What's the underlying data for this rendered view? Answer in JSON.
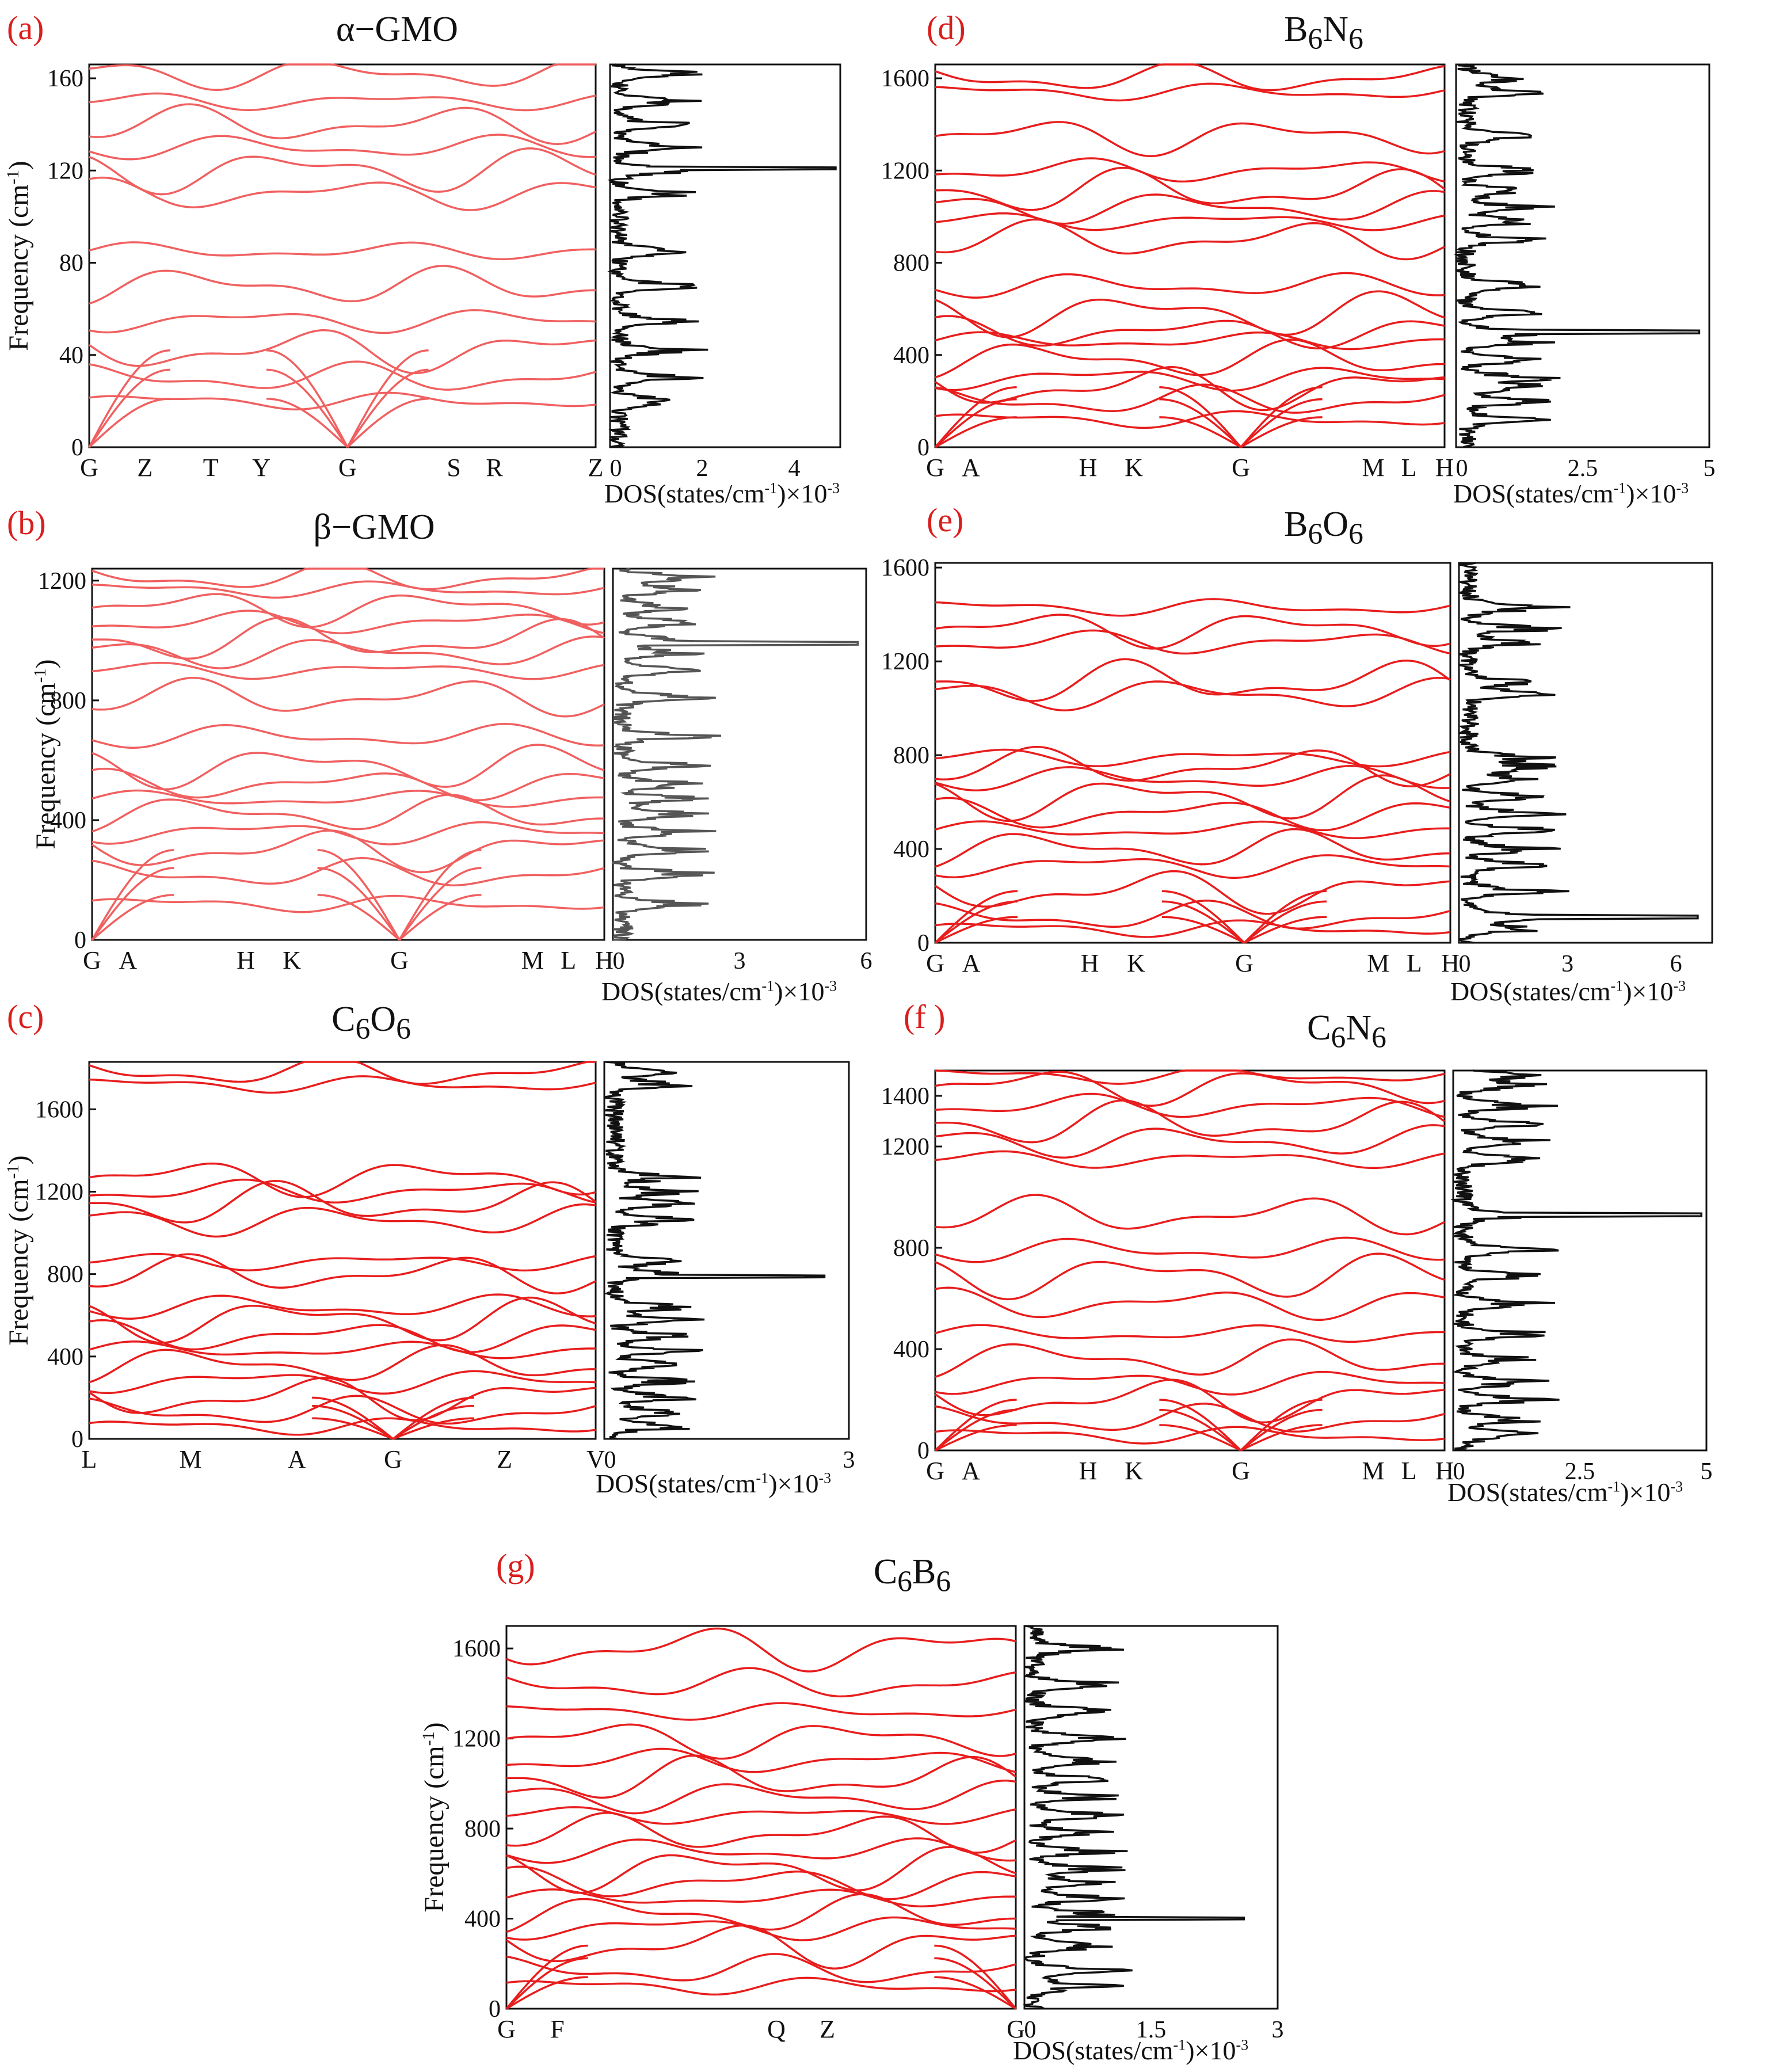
{
  "figure": {
    "line_color": "#e81d1d",
    "line_color_light": "#f06060",
    "dos_color": "#111111",
    "dos_color_grey": "#555555",
    "label_color": "#d91e1e"
  },
  "chart_data": [
    {
      "type": "line",
      "id": "a",
      "panel_label": "(a)",
      "title": "α−GMO",
      "ylabel": "Frequency (cm",
      "ylabel_sup": "-1",
      "ylabel_end": ")",
      "ylim": [
        0,
        166
      ],
      "yticks": [
        0,
        40,
        80,
        120,
        160
      ],
      "kpoints": [
        "G",
        "Z",
        "T",
        "Y",
        "G",
        "S",
        "R",
        "Z"
      ],
      "dos_xlabel": "DOS(states/cm",
      "dos_xlabel_sup": "-1",
      "dos_xlabel_end": ")×10",
      "dos_xlabel_exp": "-3",
      "dos_xticks": [
        "0",
        "2",
        "4"
      ],
      "dos_xmax": 5,
      "dos_peak": {
        "frequency": 121,
        "value": 4.95
      },
      "band_levels": [
        20,
        30,
        42,
        55,
        70,
        85,
        110,
        120,
        130,
        140,
        150,
        162
      ],
      "dos_color_key": "dos_color",
      "line_color_key": "line_color_light"
    },
    {
      "type": "line",
      "id": "b",
      "panel_label": "(b)",
      "title": "β−GMO",
      "ylabel": "Frequency (cm",
      "ylabel_sup": "-1",
      "ylabel_end": ")",
      "ylim": [
        0,
        1240
      ],
      "yticks": [
        0,
        400,
        800,
        1200
      ],
      "kpoints": [
        "G",
        "A",
        "H",
        "K",
        "G",
        "M",
        "L",
        "H"
      ],
      "dos_xlabel": "DOS(states/cm",
      "dos_xlabel_sup": "-1",
      "dos_xlabel_end": ")×10",
      "dos_xlabel_exp": "-3",
      "dos_xticks": [
        "0",
        "3",
        "6"
      ],
      "dos_xmax": 6,
      "dos_peak": {
        "frequency": 990,
        "value": 5.8
      },
      "band_levels": [
        120,
        220,
        300,
        360,
        420,
        470,
        520,
        580,
        680,
        810,
        900,
        960,
        1000,
        1060,
        1110,
        1170,
        1210
      ],
      "dos_color_key": "dos_color_grey",
      "line_color_key": "line_color_light"
    },
    {
      "type": "line",
      "id": "c",
      "panel_label": "(c)",
      "title_main": "C",
      "title_sub1": "6",
      "title_mid": "O",
      "title_sub2": "6",
      "ylabel": "Frequency (cm",
      "ylabel_sup": "-1",
      "ylabel_end": ")",
      "ylim": [
        0,
        1830
      ],
      "yticks": [
        0,
        400,
        800,
        1200,
        1600
      ],
      "kpoints": [
        "L",
        "M",
        "A",
        "G",
        "Z",
        "V"
      ],
      "dos_xlabel": "DOS(states/cm",
      "dos_xlabel_sup": "-1",
      "dos_xlabel_end": ")×10",
      "dos_xlabel_exp": "-3",
      "dos_xticks": [
        "0",
        "3"
      ],
      "dos_xmax": 3,
      "dos_peak": {
        "frequency": 790,
        "value": 2.7
      },
      "band_levels": [
        60,
        130,
        200,
        280,
        360,
        430,
        500,
        580,
        640,
        800,
        860,
        1060,
        1140,
        1200,
        1270,
        1720,
        1780
      ],
      "dos_color_key": "dos_color",
      "line_color_key": "line_color"
    },
    {
      "type": "line",
      "id": "d",
      "panel_label": "(d)",
      "title_main": "B",
      "title_sub1": "6",
      "title_mid": "N",
      "title_sub2": "6",
      "ylabel": "",
      "ylim": [
        0,
        1660
      ],
      "yticks": [
        0,
        400,
        800,
        1200,
        1600
      ],
      "kpoints": [
        "G",
        "A",
        "H",
        "K",
        "G",
        "M",
        "L",
        "H"
      ],
      "dos_xlabel": "DOS(states/cm",
      "dos_xlabel_sup": "-1",
      "dos_xlabel_end": ")×10",
      "dos_xlabel_exp": "-3",
      "dos_xticks": [
        "0",
        "2.5",
        "5"
      ],
      "dos_xmax": 5,
      "dos_peak": {
        "frequency": 500,
        "value": 4.8
      },
      "band_levels": [
        120,
        200,
        260,
        300,
        380,
        460,
        500,
        580,
        700,
        900,
        980,
        1040,
        1110,
        1200,
        1350,
        1540,
        1600
      ],
      "dos_color_key": "dos_color",
      "line_color_key": "line_color"
    },
    {
      "type": "line",
      "id": "e",
      "panel_label": "(e)",
      "title_main": "B",
      "title_sub1": "6",
      "title_mid": "O",
      "title_sub2": "6",
      "ylabel": "",
      "ylim": [
        0,
        1620
      ],
      "yticks": [
        0,
        400,
        800,
        1200,
        1600
      ],
      "kpoints": [
        "G",
        "A",
        "H",
        "K",
        "G",
        "M",
        "L",
        "H"
      ],
      "dos_xlabel": "DOS(states/cm",
      "dos_xlabel_sup": "-1",
      "dos_xlabel_end": ")×10",
      "dos_xlabel_exp": "-3",
      "dos_xticks": [
        "0",
        "3",
        "6"
      ],
      "dos_xmax": 7,
      "dos_peak": {
        "frequency": 110,
        "value": 6.6
      },
      "band_levels": [
        60,
        110,
        220,
        330,
        400,
        480,
        550,
        620,
        700,
        750,
        790,
        1060,
        1110,
        1280,
        1340,
        1430
      ],
      "dos_color_key": "dos_color",
      "line_color_key": "line_color"
    },
    {
      "type": "line",
      "id": "f",
      "panel_label": "(f )",
      "title_main": "C",
      "title_sub1": "6",
      "title_mid": "N",
      "title_sub2": "6",
      "ylabel": "",
      "ylim": [
        0,
        1500
      ],
      "yticks": [
        0,
        400,
        800,
        1200,
        1400
      ],
      "kpoints": [
        "G",
        "A",
        "H",
        "K",
        "G",
        "M",
        "L",
        "H"
      ],
      "dos_xlabel": "DOS(states/cm",
      "dos_xlabel_sup": "-1",
      "dos_xlabel_end": ")×10",
      "dos_xlabel_exp": "-3",
      "dos_xticks": [
        "0",
        "2.5",
        "5"
      ],
      "dos_xmax": 5,
      "dos_peak": {
        "frequency": 930,
        "value": 5.0
      },
      "band_levels": [
        60,
        120,
        200,
        270,
        360,
        460,
        580,
        690,
        790,
        930,
        1150,
        1220,
        1290,
        1360,
        1440,
        1480
      ],
      "dos_color_key": "dos_color",
      "line_color_key": "line_color"
    },
    {
      "type": "line",
      "id": "g",
      "panel_label": "(g)",
      "title_main": "C",
      "title_sub1": "6",
      "title_mid": "B",
      "title_sub2": "6",
      "ylabel": "Frequency (cm",
      "ylabel_sup": "-1",
      "ylabel_end": ")",
      "ylim": [
        0,
        1700
      ],
      "yticks": [
        0,
        400,
        800,
        1200,
        1600
      ],
      "kpoints": [
        "G",
        "F",
        "Q",
        "Z",
        "G"
      ],
      "dos_xlabel": "DOS(states/cm",
      "dos_xlabel_sup": "-1",
      "dos_xlabel_end": ")×10",
      "dos_xlabel_exp": "-3",
      "dos_xticks": [
        "0",
        "1.5",
        "3"
      ],
      "dos_xmax": 3,
      "dos_peak": {
        "frequency": 400,
        "value": 2.6
      },
      "band_levels": [
        100,
        170,
        280,
        360,
        420,
        490,
        560,
        620,
        700,
        780,
        860,
        940,
        1020,
        1100,
        1200,
        1320,
        1440,
        1600
      ],
      "dos_color_key": "dos_color",
      "line_color_key": "line_color"
    }
  ]
}
